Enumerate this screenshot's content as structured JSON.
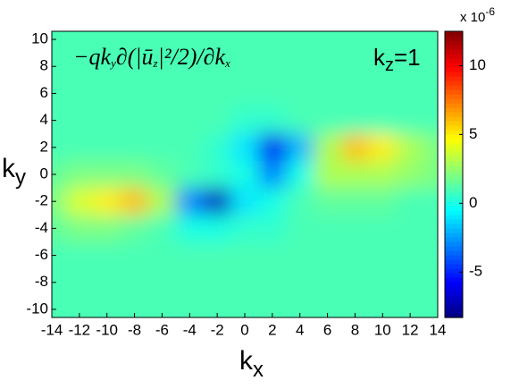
{
  "chart_data": {
    "type": "heatmap",
    "annotation": [
      "−qk",
      "y",
      "∂(|ū",
      "z",
      "|²/2)/∂k",
      "x"
    ],
    "label": [
      "k",
      "z",
      "=1"
    ],
    "xlabel": [
      "k",
      "x"
    ],
    "ylabel": [
      "k",
      "y"
    ],
    "colorbar_multiplier": [
      "x 10",
      "-6"
    ],
    "colormap": "jet",
    "x": [
      -14,
      -12,
      -10,
      -8,
      -6,
      -4,
      -2,
      0,
      2,
      4,
      6,
      8,
      10,
      12,
      14
    ],
    "y": [
      10,
      8,
      6,
      4,
      2,
      0,
      -2,
      -4,
      -6,
      -8,
      -10
    ],
    "z": [
      [
        1,
        1,
        1,
        1,
        1,
        1,
        1,
        1,
        1,
        1,
        1,
        1,
        1,
        1,
        1
      ],
      [
        1,
        1,
        1,
        1,
        1,
        1,
        1,
        1,
        1,
        1,
        1,
        1,
        1,
        1,
        1
      ],
      [
        1,
        1,
        1,
        1,
        1,
        1,
        1,
        1,
        1,
        1,
        1,
        1,
        1,
        1,
        1
      ],
      [
        1,
        1,
        1,
        1,
        1,
        1,
        1,
        0.5,
        0.5,
        1,
        1,
        1,
        1,
        1,
        1
      ],
      [
        1,
        1,
        1,
        1,
        1,
        1,
        0.5,
        -1,
        -6,
        -2,
        3,
        6,
        5,
        3,
        2
      ],
      [
        1.5,
        2,
        2,
        2,
        1.5,
        1,
        0.5,
        0,
        -3,
        0,
        3,
        3,
        3,
        2.5,
        2
      ],
      [
        2,
        4,
        5,
        6,
        3,
        -3,
        -7,
        -1,
        0,
        1,
        1.5,
        1.5,
        1.5,
        1,
        1
      ],
      [
        1.5,
        2,
        2,
        1.5,
        1,
        0,
        0,
        0.5,
        0.5,
        1,
        1,
        1,
        1,
        1,
        1
      ],
      [
        1,
        1,
        1,
        1,
        1,
        1,
        1,
        1,
        1,
        1,
        1,
        1,
        1,
        1,
        1
      ],
      [
        1,
        1,
        1,
        1,
        1,
        1,
        1,
        1,
        1,
        1,
        1,
        1,
        1,
        1,
        1
      ],
      [
        1,
        1,
        1,
        1,
        1,
        1,
        1,
        1,
        1,
        1,
        1,
        1,
        1,
        1,
        1
      ]
    ],
    "xlim": [
      -14,
      14
    ],
    "ylim": [
      -10.6,
      10.6
    ],
    "xticks": [
      -14,
      -12,
      -10,
      -8,
      -6,
      -4,
      -2,
      0,
      2,
      4,
      6,
      8,
      10,
      12,
      14
    ],
    "yticks": [
      -10,
      -8,
      -6,
      -4,
      -2,
      0,
      2,
      4,
      6,
      8,
      10
    ],
    "clim": [
      -8.3,
      12.5
    ],
    "cticks": [
      -5,
      0,
      5,
      10
    ]
  }
}
